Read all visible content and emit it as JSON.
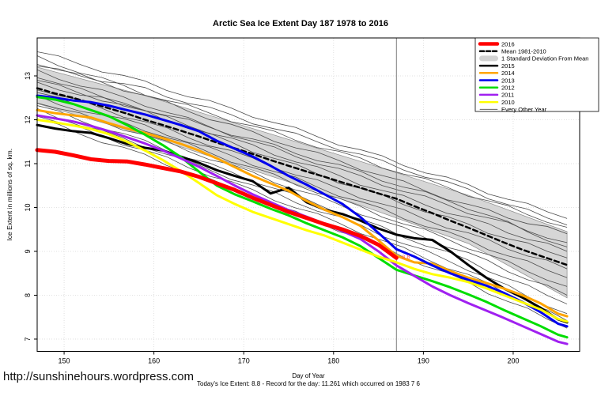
{
  "title": "Arctic Sea Ice Extent Day 187 1978 to 2016",
  "footer": {
    "url": "http://sunshinehours.wordpress.com",
    "xlabel": "Day of Year",
    "subtitle": "Today's Ice Extent: 8.8  - Record for the day: 11.261 which occurred on 1983 7 6"
  },
  "annotation": {
    "text": "8.8",
    "day": 187.6,
    "value": 8.86,
    "color": "#ff5555"
  },
  "legend": {
    "items": [
      {
        "label": "2016",
        "color": "#ff0000",
        "width": 4.5,
        "dash": "",
        "swatch": "line"
      },
      {
        "label": "Mean 1981-2010",
        "color": "#000000",
        "width": 2.5,
        "dash": "5 3",
        "swatch": "line"
      },
      {
        "label": "1 Standard Deviation From Mean",
        "color": "#d3d3d3",
        "width": 7,
        "dash": "",
        "swatch": "band"
      },
      {
        "label": "2015",
        "color": "#000000",
        "width": 2.5,
        "dash": "",
        "swatch": "line"
      },
      {
        "label": "2014",
        "color": "#ffa500",
        "width": 2.5,
        "dash": "",
        "swatch": "line"
      },
      {
        "label": "2013",
        "color": "#0000ee",
        "width": 2.5,
        "dash": "",
        "swatch": "line"
      },
      {
        "label": "2012",
        "color": "#00dd00",
        "width": 2.5,
        "dash": "",
        "swatch": "line"
      },
      {
        "label": "2011",
        "color": "#a020f0",
        "width": 2.5,
        "dash": "",
        "swatch": "line"
      },
      {
        "label": "2010",
        "color": "#ffff00",
        "width": 2.5,
        "dash": "",
        "swatch": "line"
      },
      {
        "label": "Every Other Year",
        "color": "#4d4d4d",
        "width": 0.8,
        "dash": "",
        "swatch": "line"
      }
    ]
  },
  "chart_data": {
    "type": "line",
    "title": "Arctic Sea Ice Extent Day 187 1978 to 2016",
    "xlabel": "Day of Year",
    "ylabel": "Ice Extent in millions of sq. km.",
    "xlim": [
      147,
      207.4
    ],
    "ylim": [
      6.72,
      13.865
    ],
    "xticks": [
      150,
      160,
      170,
      180,
      190,
      200
    ],
    "yticks": [
      7,
      8,
      9,
      10,
      11,
      12,
      13
    ],
    "grid": "dotted",
    "legend_position": "top-right",
    "vline": {
      "x": 187,
      "color": "#808080"
    },
    "x": [
      147,
      149,
      151,
      153,
      155,
      157,
      159,
      161,
      163,
      165,
      167,
      169,
      171,
      173,
      175,
      177,
      179,
      181,
      183,
      185,
      187,
      189,
      191,
      193,
      195,
      197,
      199,
      201,
      203,
      205,
      206
    ],
    "band": {
      "name": "1 Standard Deviation From Mean",
      "fill": "#d6d6d6",
      "edge": "#8a8a8a",
      "x": [
        147,
        159,
        171,
        183,
        195,
        206
      ],
      "top": [
        13.2,
        12.55,
        11.8,
        11.05,
        10.28,
        9.45
      ],
      "bottom": [
        12.37,
        11.65,
        10.85,
        10.05,
        9.18,
        7.94
      ]
    },
    "series": [
      {
        "name": "Mean 1981-2010",
        "color": "#000000",
        "width": 2.5,
        "dash": "6 4",
        "values": [
          12.72,
          12.6,
          12.5,
          12.38,
          12.26,
          12.14,
          12.0,
          11.88,
          11.75,
          11.62,
          11.48,
          11.35,
          11.22,
          11.08,
          10.95,
          10.82,
          10.7,
          10.57,
          10.45,
          10.32,
          10.2,
          10.03,
          9.87,
          9.7,
          9.54,
          9.37,
          9.2,
          9.04,
          8.9,
          8.76,
          8.69
        ]
      },
      {
        "name": "2015",
        "color": "#000000",
        "width": 3,
        "dash": "",
        "values": [
          11.88,
          11.8,
          11.74,
          11.7,
          11.58,
          11.45,
          11.36,
          11.3,
          11.16,
          11.02,
          10.85,
          10.72,
          10.6,
          10.32,
          10.45,
          10.12,
          9.95,
          9.85,
          9.7,
          9.52,
          9.38,
          9.3,
          9.26,
          9.0,
          8.69,
          8.4,
          8.15,
          7.95,
          7.72,
          7.45,
          7.38
        ]
      },
      {
        "name": "2014",
        "color": "#ffa500",
        "width": 3,
        "dash": "",
        "values": [
          12.22,
          12.15,
          12.1,
          12.05,
          11.92,
          11.8,
          11.7,
          11.58,
          11.45,
          11.3,
          11.12,
          10.92,
          10.72,
          10.55,
          10.38,
          10.15,
          9.95,
          9.78,
          9.58,
          9.25,
          8.9,
          8.75,
          8.72,
          8.55,
          8.4,
          8.28,
          8.15,
          8.0,
          7.82,
          7.58,
          7.52
        ]
      },
      {
        "name": "2013",
        "color": "#0000ee",
        "width": 3,
        "dash": "",
        "values": [
          12.55,
          12.5,
          12.44,
          12.4,
          12.32,
          12.22,
          12.12,
          12.0,
          11.88,
          11.74,
          11.52,
          11.34,
          11.16,
          10.95,
          10.72,
          10.52,
          10.3,
          10.08,
          9.78,
          9.42,
          9.05,
          8.88,
          8.68,
          8.5,
          8.35,
          8.22,
          8.05,
          7.85,
          7.62,
          7.35,
          7.29
        ]
      },
      {
        "name": "2012",
        "color": "#00dd00",
        "width": 3,
        "dash": "",
        "values": [
          12.52,
          12.46,
          12.36,
          12.22,
          12.08,
          11.88,
          11.66,
          11.42,
          11.15,
          10.82,
          10.5,
          10.3,
          10.14,
          9.97,
          9.82,
          9.64,
          9.48,
          9.32,
          9.12,
          8.85,
          8.58,
          8.45,
          8.32,
          8.18,
          8.02,
          7.85,
          7.66,
          7.48,
          7.3,
          7.1,
          7.04
        ]
      },
      {
        "name": "2011",
        "color": "#a020f0",
        "width": 3,
        "dash": "",
        "values": [
          12.1,
          12.03,
          11.96,
          11.86,
          11.74,
          11.6,
          11.46,
          11.3,
          11.12,
          10.93,
          10.72,
          10.5,
          10.3,
          10.12,
          9.94,
          9.79,
          9.63,
          9.46,
          9.28,
          9.0,
          8.68,
          8.44,
          8.2,
          8.0,
          7.82,
          7.65,
          7.48,
          7.3,
          7.12,
          6.94,
          6.89
        ]
      },
      {
        "name": "2010",
        "color": "#ffff00",
        "width": 3,
        "dash": "",
        "values": [
          12.0,
          11.94,
          11.87,
          11.79,
          11.67,
          11.5,
          11.3,
          11.08,
          10.83,
          10.56,
          10.28,
          10.08,
          9.9,
          9.76,
          9.62,
          9.48,
          9.36,
          9.2,
          9.04,
          8.88,
          8.75,
          8.6,
          8.48,
          8.4,
          8.3,
          8.16,
          8.0,
          7.84,
          7.68,
          7.46,
          7.4
        ]
      },
      {
        "name": "2016",
        "color": "#ff0000",
        "width": 5,
        "dash": "",
        "values": [
          11.31,
          11.27,
          11.19,
          11.1,
          11.06,
          11.05,
          10.98,
          10.9,
          10.82,
          10.7,
          10.55,
          10.4,
          10.22,
          10.06,
          9.9,
          9.76,
          9.62,
          9.5,
          9.35,
          9.15,
          8.85
        ]
      }
    ],
    "gray_lines": {
      "name": "Every Other Year",
      "color": "#4d4d4d",
      "width": 0.8,
      "x": [
        147,
        159,
        171,
        183,
        195,
        206
      ],
      "lines": [
        [
          13.55,
          12.85,
          12.1,
          11.3,
          10.5,
          9.75
        ],
        [
          13.42,
          12.6,
          11.85,
          11.1,
          10.3,
          9.55
        ],
        [
          13.3,
          12.55,
          11.7,
          10.9,
          10.05,
          9.4
        ],
        [
          13.22,
          12.7,
          11.95,
          11.2,
          10.4,
          9.6
        ],
        [
          13.1,
          12.35,
          11.5,
          10.7,
          9.9,
          9.2
        ],
        [
          13.0,
          12.2,
          11.4,
          10.55,
          9.75,
          9.0
        ],
        [
          12.9,
          12.18,
          11.3,
          10.42,
          9.6,
          8.85
        ],
        [
          12.82,
          12.25,
          11.55,
          10.8,
          10.0,
          9.1
        ],
        [
          12.72,
          11.95,
          11.1,
          10.25,
          9.4,
          8.6
        ],
        [
          12.62,
          11.85,
          11.0,
          10.12,
          9.25,
          8.4
        ],
        [
          12.52,
          11.78,
          10.9,
          10.0,
          9.1,
          8.2
        ],
        [
          12.42,
          11.65,
          10.78,
          9.88,
          8.95,
          8.0
        ],
        [
          12.32,
          11.5,
          10.62,
          9.72,
          8.78,
          7.8
        ],
        [
          12.22,
          11.4,
          10.5,
          9.58,
          8.6,
          7.58
        ],
        [
          12.12,
          11.3,
          10.38,
          9.45,
          8.45,
          7.42
        ],
        [
          12.02,
          11.18,
          10.25,
          9.3,
          8.28,
          7.25
        ]
      ]
    }
  }
}
